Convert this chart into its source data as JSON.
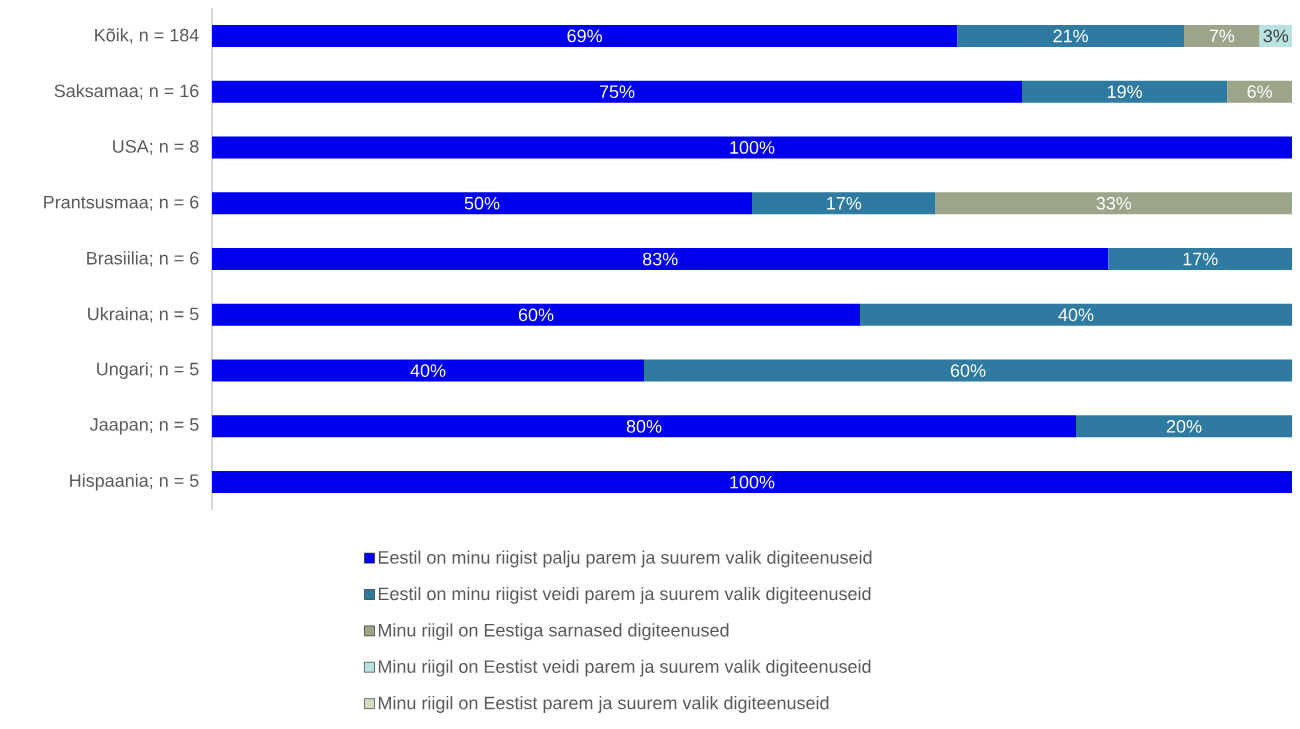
{
  "chart_data": {
    "type": "bar",
    "orientation": "horizontal",
    "stacked": true,
    "categories": [
      "Kõik, n = 184",
      "Saksamaa; n = 16",
      "USA; n = 8",
      "Prantsusmaa; n = 6",
      "Brasiilia; n = 6",
      "Ukraina; n = 5",
      "Ungari; n = 5",
      "Jaapan; n = 5",
      "Hispaania; n = 5"
    ],
    "xlim": [
      0,
      100
    ],
    "tick_labels": "y",
    "legend": "bottom",
    "series": [
      {
        "name": "Eestil on minu riigist palju parem ja suurem valik digiteenuseid",
        "color": "#0000ee",
        "values": [
          69,
          75,
          100,
          50,
          83,
          60,
          40,
          80,
          100
        ],
        "value_labels": [
          "69%",
          "75%",
          "100%",
          "50%",
          "83%",
          "60%",
          "40%",
          "80%",
          "100%"
        ]
      },
      {
        "name": "Eestil on minu riigist veidi parem ja suurem valik digiteenuseid",
        "color": "#2e7aa0",
        "values": [
          21,
          19,
          null,
          17,
          17,
          40,
          60,
          20,
          null
        ],
        "value_labels": [
          "21%",
          "19%",
          null,
          "17%",
          "17%",
          "40%",
          "60%",
          "20%",
          null
        ]
      },
      {
        "name": "Minu riigil on Eestiga sarnased digiteenused",
        "color": "#9aa58a",
        "values": [
          7,
          6,
          null,
          33,
          null,
          null,
          null,
          null,
          null
        ],
        "value_labels": [
          "7%",
          "6%",
          null,
          "33%",
          null,
          null,
          null,
          null,
          null
        ]
      },
      {
        "name": "Minu riigil on Eestist veidi parem ja suurem valik digiteenuseid",
        "color": "#b9e3e3",
        "values": [
          3,
          null,
          null,
          null,
          null,
          null,
          null,
          null,
          null
        ],
        "value_labels": [
          "3%",
          null,
          null,
          null,
          null,
          null,
          null,
          null,
          null
        ]
      },
      {
        "name": "Minu riigil on Eestist parem ja suurem valik digiteenuseid",
        "color": "#d3dcc2",
        "values": [
          null,
          null,
          null,
          null,
          null,
          null,
          null,
          null,
          null
        ]
      }
    ]
  }
}
